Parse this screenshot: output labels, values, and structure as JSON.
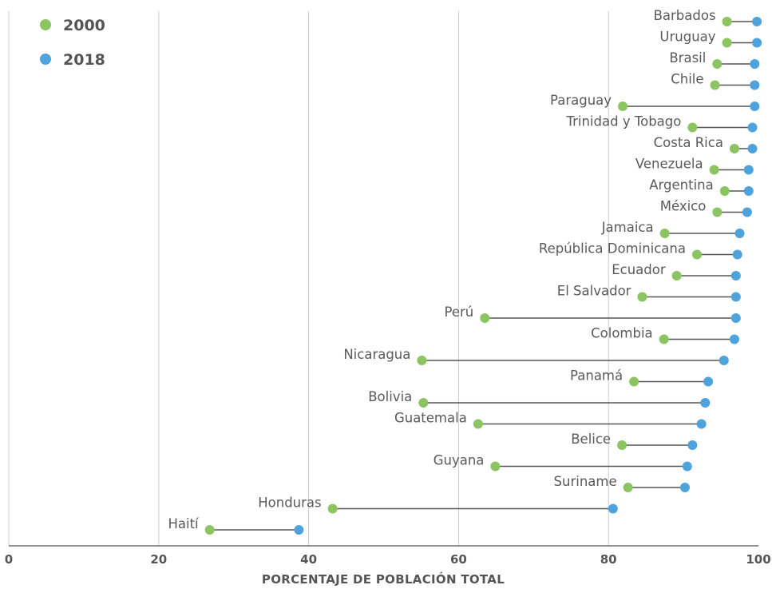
{
  "chart_data": {
    "type": "dumbbell",
    "xlabel": "PORCENTAJE DE POBLACIÓN TOTAL",
    "xlim": [
      0,
      100
    ],
    "xticks": [
      "0",
      "20",
      "40",
      "60",
      "80",
      "100"
    ],
    "grid": true,
    "legend_position": "top-left",
    "series": [
      {
        "name": "2000",
        "color": "#8dc462"
      },
      {
        "name": "2018",
        "color": "#4fa3dc"
      }
    ],
    "categories": [
      "Barbados",
      "Uruguay",
      "Brasil",
      "Chile",
      "Paraguay",
      "Trinidad y Tobago",
      "Costa Rica",
      "Venezuela",
      "Argentina",
      "México",
      "Jamaica",
      "República Dominicana",
      "Ecuador",
      "El Salvador",
      "Perú",
      "Colombia",
      "Nicaragua",
      "Panamá",
      "Bolivia",
      "Guatemala",
      "Belice",
      "Guyana",
      "Suriname",
      "Honduras",
      "Haití"
    ],
    "values_2000": [
      95.8,
      95.8,
      94.5,
      94.2,
      81.9,
      91.2,
      96.8,
      94.1,
      95.5,
      94.5,
      87.5,
      91.8,
      89.1,
      84.5,
      63.5,
      87.4,
      55.1,
      83.4,
      55.3,
      62.6,
      81.8,
      64.9,
      82.6,
      43.2,
      26.8
    ],
    "values_2018": [
      99.8,
      99.8,
      99.5,
      99.5,
      99.5,
      99.2,
      99.2,
      98.7,
      98.7,
      98.5,
      97.5,
      97.2,
      97.0,
      97.0,
      97.0,
      96.8,
      95.4,
      93.3,
      92.9,
      92.4,
      91.2,
      90.5,
      90.2,
      80.6,
      38.7
    ]
  }
}
